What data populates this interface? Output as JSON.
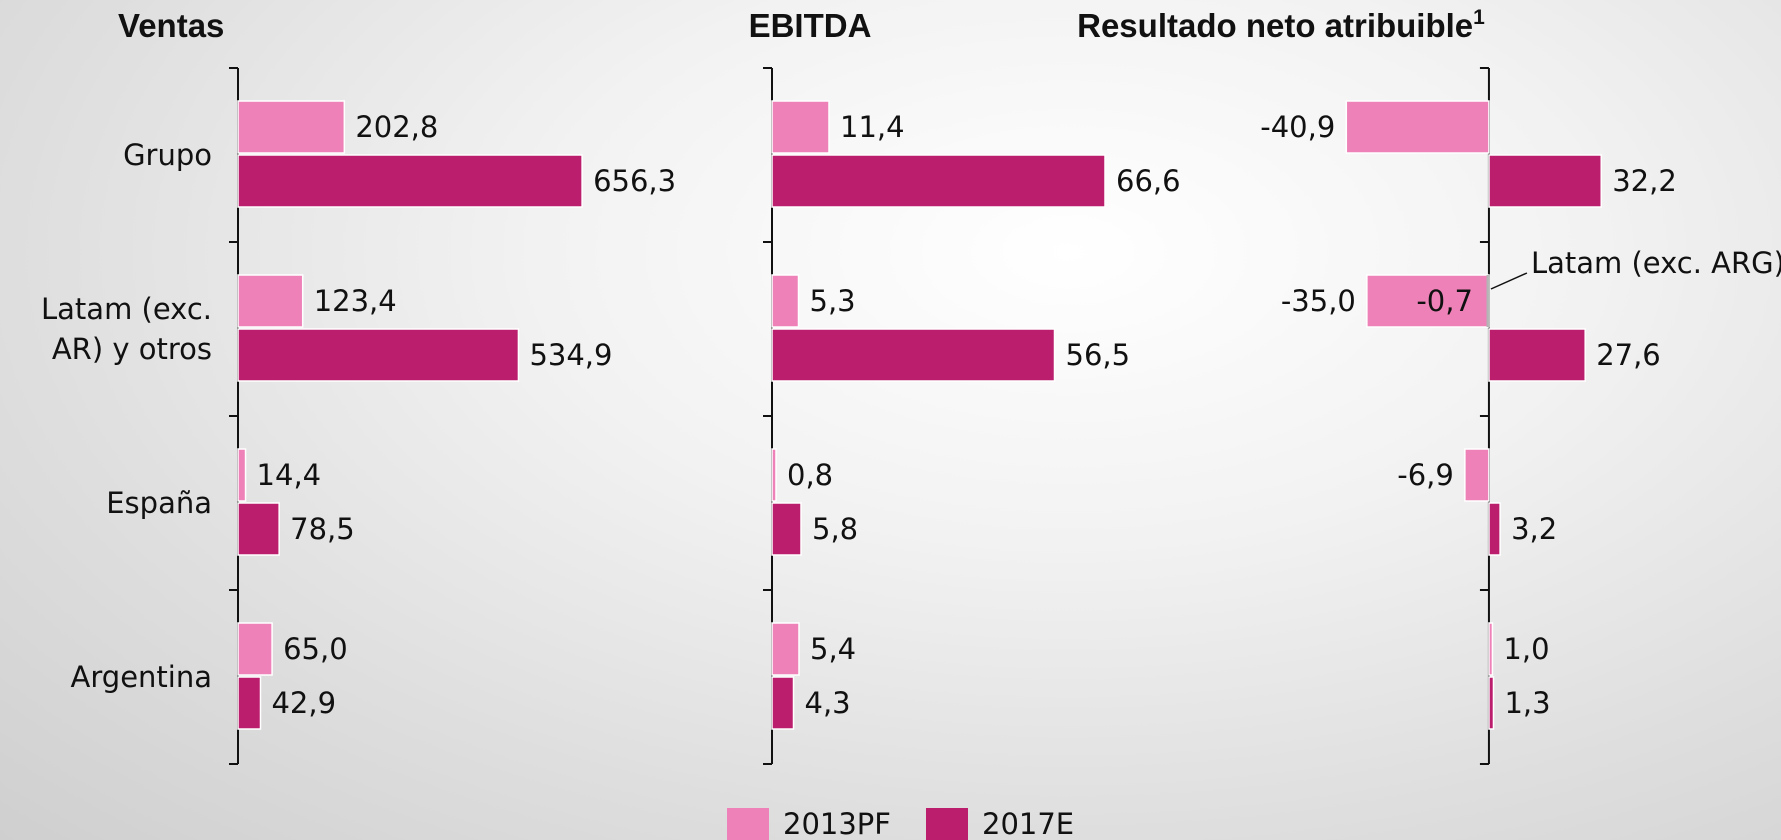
{
  "chart_data": [
    {
      "type": "bar",
      "orientation": "horizontal",
      "title": "Ventas",
      "categories": [
        "Grupo",
        "Latam (exc. AR) y otros",
        "España",
        "Argentina"
      ],
      "xlim": [
        0,
        700
      ],
      "series": [
        {
          "name": "2013PF",
          "color": "#ee82b8",
          "values": [
            202.8,
            123.4,
            14.4,
            65.0
          ],
          "value_labels": [
            "202,8",
            "123,4",
            "14,4",
            "65,0"
          ]
        },
        {
          "name": "2017E",
          "color": "#bc1e6e",
          "values": [
            656.3,
            534.9,
            78.5,
            42.9
          ],
          "value_labels": [
            "656,3",
            "534,9",
            "78,5",
            "42,9"
          ]
        }
      ]
    },
    {
      "type": "bar",
      "orientation": "horizontal",
      "title": "EBITDA",
      "xlim": [
        0,
        70
      ],
      "series": [
        {
          "color": "#ee82b8",
          "values": [
            11.4,
            5.3,
            0.8,
            5.4
          ],
          "value_labels": [
            "11,4",
            "5,3",
            "0,8",
            "5,4"
          ]
        },
        {
          "color": "#bc1e6e",
          "values": [
            66.6,
            56.5,
            5.8,
            4.3
          ],
          "value_labels": [
            "66,6",
            "56,5",
            "5,8",
            "4,3"
          ]
        }
      ]
    },
    {
      "type": "bar",
      "orientation": "horizontal",
      "title": "Resultado neto atribuible",
      "title_footnote": "1",
      "xlim": [
        -45,
        35
      ],
      "series": [
        {
          "color": "#ee82b8",
          "values": [
            -40.9,
            -35.0,
            -6.9,
            1.0
          ],
          "value_labels": [
            "-40,9",
            "-35,0",
            "-6,9",
            "1,0"
          ]
        },
        {
          "color": "#bc1e6e",
          "values": [
            32.2,
            27.6,
            3.2,
            1.3
          ],
          "value_labels": [
            "32,2",
            "27,6",
            "3,2",
            "1,3"
          ]
        }
      ],
      "annotation": {
        "text": "Latam (exc. ARG)",
        "value": -0.7,
        "value_label": "-0,7",
        "color": "#b4b4b4"
      }
    }
  ]
}
